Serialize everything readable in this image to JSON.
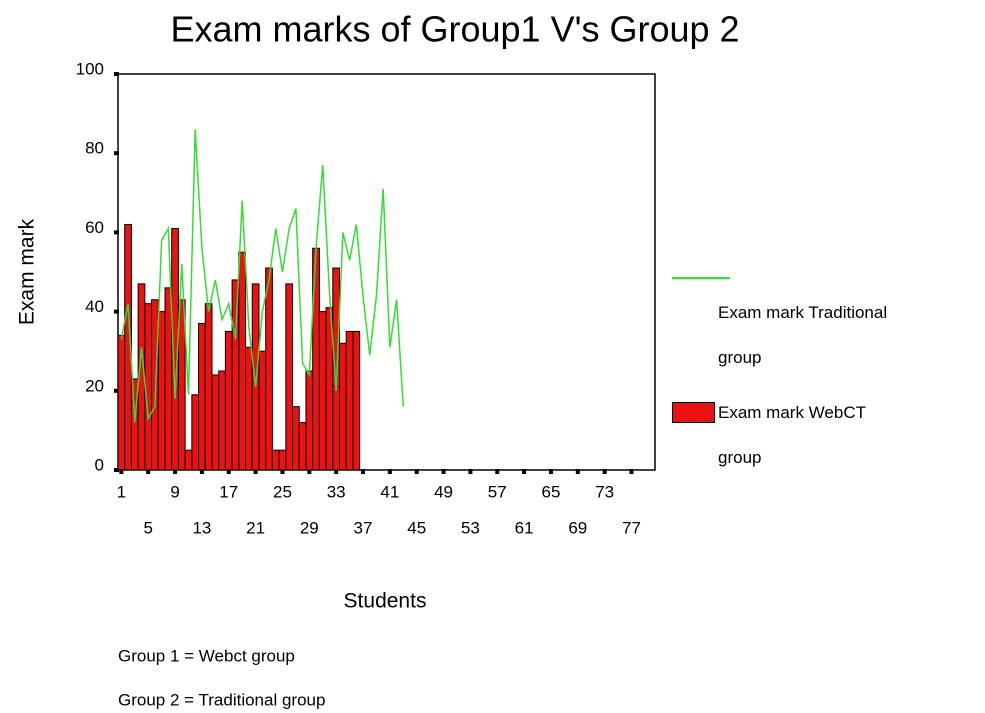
{
  "chart_data": {
    "type": "bar_line",
    "title": "Exam marks of Group1 V's Group 2",
    "x_label": "Students",
    "y_label": "Exam mark",
    "annotations": [
      "Group 1 = Webct group",
      "Group 2 = Traditional group"
    ],
    "categories": [
      "1",
      null,
      null,
      null,
      "5",
      null,
      null,
      null,
      "9",
      null,
      null,
      null,
      "13",
      null,
      null,
      null,
      "17",
      null,
      null,
      null,
      "21",
      null,
      null,
      null,
      "25",
      null,
      null,
      null,
      "29",
      null,
      null,
      null,
      "33",
      null,
      null,
      null,
      "37",
      null,
      null,
      null,
      "41",
      null,
      null,
      null,
      "45",
      null,
      null,
      null,
      "49",
      null,
      null,
      null,
      "53",
      null,
      null,
      null,
      "57",
      null,
      null,
      null,
      "61",
      null,
      null,
      null,
      "65",
      null,
      null,
      null,
      "69",
      null,
      null,
      null,
      "73",
      null,
      null,
      null,
      "77",
      null,
      null,
      null
    ],
    "ylim": [
      0,
      100
    ],
    "yticks": [
      0,
      20,
      40,
      60,
      80,
      100
    ],
    "series": [
      {
        "name": "Exam mark Traditional group",
        "kind": "line",
        "color": "#33dd33",
        "values": [
          33,
          42,
          12,
          31,
          13,
          16,
          58,
          61,
          18,
          52,
          19,
          86,
          56,
          40,
          48,
          38,
          42,
          33,
          68,
          36,
          21,
          40,
          48,
          61,
          50,
          61,
          66,
          27,
          24,
          56,
          77,
          45,
          20,
          60,
          53,
          62,
          44,
          29,
          44,
          71,
          31,
          43,
          16,
          null,
          null,
          null,
          null,
          null,
          null,
          null,
          null,
          null,
          null,
          null,
          null,
          null,
          null,
          null,
          null,
          null,
          null,
          null,
          null,
          null,
          null,
          null,
          null,
          null,
          null,
          null,
          null,
          null,
          null,
          null,
          null,
          null,
          null,
          null,
          null,
          null
        ]
      },
      {
        "name": "Exam mark WebCT group",
        "kind": "bar",
        "color": "#ee1111",
        "values": [
          34,
          62,
          23,
          47,
          42,
          43,
          40,
          46,
          61,
          43,
          5,
          19,
          37,
          42,
          24,
          25,
          35,
          48,
          55,
          31,
          47,
          30,
          51,
          5,
          5,
          47,
          16,
          12,
          25,
          56,
          40,
          41,
          51,
          32,
          35,
          35,
          null,
          null,
          null,
          null,
          null,
          null,
          null,
          null,
          null,
          null,
          null,
          null,
          null,
          null,
          null,
          null,
          null,
          null,
          null,
          null,
          null,
          null,
          null,
          null,
          null,
          null,
          null,
          null,
          null,
          null,
          null,
          null,
          null,
          null,
          null,
          null,
          null,
          null,
          null,
          null,
          null,
          null,
          null,
          null
        ]
      }
    ]
  }
}
